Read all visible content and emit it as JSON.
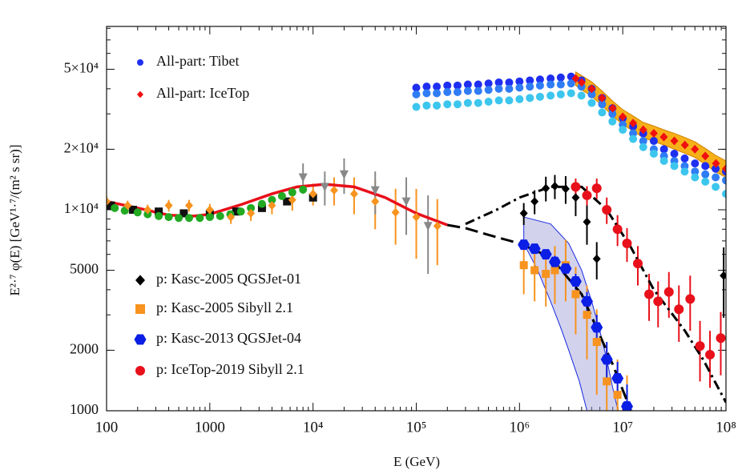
{
  "chart_data": {
    "type": "scatter",
    "xlabel": "E (GeV)",
    "ylabel": "E²·⁷ φ(E)    [GeV¹·⁷/(m² s sr)]",
    "xscale": "log",
    "yscale": "log",
    "xlim": [
      100,
      100000000
    ],
    "ylim": [
      1000,
      81700
    ],
    "xticks": [
      100,
      1000,
      {
        "value": 10000,
        "label": "10⁴"
      },
      {
        "value": 100000,
        "label": "10⁵"
      },
      {
        "value": 1000000,
        "label": "10⁶"
      },
      {
        "value": 10000000,
        "label": "10⁷"
      },
      {
        "value": 100000000,
        "label": "10⁸"
      }
    ],
    "yticks": [
      1000,
      2000,
      5000,
      {
        "value": 10000,
        "label": "1×10⁴"
      },
      {
        "value": 20000,
        "label": "2×10⁴"
      },
      {
        "value": 50000,
        "label": "5×10⁴"
      }
    ],
    "series": [
      {
        "name": "All-part: Tibet",
        "legend_group": 1,
        "marker": "circle",
        "color": "#1f2ff0",
        "x": [
          100000,
          126000,
          158000,
          200000,
          251000,
          316000,
          398000,
          501000,
          631000,
          794000,
          1000000,
          1260000,
          1580000,
          2000000,
          2510000,
          3160000,
          3980000,
          5010000,
          6310000,
          7940000,
          10000000,
          12600000,
          15800000,
          20000000,
          25100000,
          31600000,
          39800000,
          50100000,
          63100000,
          79400000,
          100000000
        ],
        "values": [
          40500,
          41000,
          41000,
          41500,
          41500,
          42000,
          42000,
          42500,
          43000,
          43000,
          43500,
          44000,
          44500,
          45000,
          45500,
          46000,
          44000,
          40000,
          36000,
          32000,
          28500,
          26000,
          24000,
          22000,
          20000,
          19000,
          18000,
          17000,
          16500,
          16000,
          15500
        ]
      },
      {
        "marker": "circle",
        "color": "#2f7cf5",
        "x": [
          100000,
          126000,
          158000,
          200000,
          251000,
          316000,
          398000,
          501000,
          631000,
          794000,
          1000000,
          1260000,
          1580000,
          2000000,
          2510000,
          3160000,
          3980000,
          5010000,
          6310000,
          7940000,
          10000000,
          12600000,
          15800000,
          20000000,
          25100000,
          31600000,
          39800000,
          50100000,
          63100000,
          79400000,
          100000000
        ],
        "values": [
          37500,
          38000,
          38000,
          38500,
          38500,
          39000,
          39000,
          39500,
          40000,
          40000,
          40500,
          41000,
          41500,
          42000,
          42000,
          42500,
          41000,
          37500,
          33500,
          30000,
          26500,
          24000,
          22000,
          20000,
          18500,
          17500,
          16500,
          15500,
          15000,
          14500,
          14000
        ]
      },
      {
        "marker": "circle",
        "color": "#3cc6ee",
        "x": [
          100000,
          126000,
          158000,
          200000,
          251000,
          316000,
          398000,
          501000,
          631000,
          794000,
          1000000,
          1260000,
          1580000,
          2000000,
          2510000,
          3160000,
          3980000,
          5010000,
          6310000,
          7940000,
          10000000,
          12600000,
          15800000,
          20000000,
          25100000,
          31600000,
          39800000,
          50100000,
          63100000,
          79400000,
          100000000
        ],
        "values": [
          32500,
          33000,
          33000,
          33500,
          33500,
          34000,
          34000,
          34500,
          35000,
          35000,
          35500,
          36000,
          36500,
          37000,
          37500,
          38000,
          37000,
          34000,
          30500,
          27500,
          25000,
          22500,
          20500,
          19000,
          17500,
          16500,
          15500,
          14500,
          13800,
          13000,
          12000
        ]
      },
      {
        "name": "All-part: IceTop",
        "legend_group": 1,
        "marker": "diamond",
        "color": "#f01010",
        "band_color": "#f5a800",
        "x": [
          3500000,
          4000000,
          5000000,
          6300000,
          8000000,
          10000000,
          12600000,
          15800000,
          20000000,
          25000000,
          31600000,
          40000000,
          50000000,
          63000000,
          80000000,
          100000000
        ],
        "values": [
          45000,
          43000,
          40000,
          36000,
          32000,
          29000,
          27000,
          25000,
          24000,
          23000,
          22000,
          21000,
          20000,
          18500,
          17000,
          16000
        ],
        "errors": [
          3500,
          3500,
          3300,
          3000,
          2700,
          2500,
          2300,
          2200,
          2100,
          2000,
          2000,
          1900,
          1800,
          1700,
          1600,
          1500
        ]
      },
      {
        "name": "p: Kasc-2005 QGSJet-01",
        "legend_group": 2,
        "marker": "diamond",
        "color": "#000000",
        "x": [
          1100000,
          1400000,
          1800000,
          2200000,
          2800000,
          3500000,
          4500000,
          5600000,
          95000000
        ],
        "values": [
          9600,
          11000,
          12800,
          13100,
          12700,
          11500,
          8700,
          5700,
          4700
        ],
        "errors": [
          1200,
          1500,
          1800,
          1800,
          2000,
          2200,
          2000,
          1200,
          1800
        ]
      },
      {
        "name": "p: Kasc-2005 Sibyll 2.1",
        "legend_group": 2,
        "marker": "square",
        "color": "#f7931e",
        "x": [
          1100000,
          1400000,
          1800000,
          2200000,
          2800000,
          3500000,
          4500000,
          5600000,
          7000000,
          8900000,
          11000000
        ],
        "values": [
          5300,
          5000,
          4800,
          5000,
          5300,
          3800,
          3000,
          2200,
          1400,
          1200,
          1000
        ],
        "errors": [
          1500,
          1500,
          1500,
          1600,
          1800,
          1400,
          1200,
          1000,
          700,
          600,
          500
        ]
      },
      {
        "name": "p: Kasc-2013 QGSJet-04",
        "legend_group": 2,
        "marker": "hexagon",
        "color": "#0a1ee6",
        "x": [
          1100000,
          1400000,
          1800000,
          2200000,
          2800000,
          3500000,
          4500000,
          5600000,
          7000000,
          8900000,
          11000000
        ],
        "values": [
          6700,
          6400,
          6000,
          5500,
          5100,
          4400,
          3500,
          2600,
          1800,
          1450,
          1050
        ],
        "errors": [
          300,
          300,
          300,
          400,
          400,
          400,
          400,
          400,
          400,
          300,
          300
        ]
      },
      {
        "name": "p: IceTop-2019 Sibyll 2.1",
        "legend_group": 2,
        "marker": "circle",
        "color": "#e8101a",
        "x": [
          3500000,
          4500000,
          5600000,
          7000000,
          8900000,
          11000000,
          14000000,
          18000000,
          22000000,
          28000000,
          35000000,
          45000000,
          56000000,
          70000000,
          89000000
        ],
        "values": [
          13000,
          11800,
          12800,
          10000,
          8000,
          6800,
          5400,
          3800,
          3500,
          3900,
          3200,
          3600,
          2100,
          1900,
          2300
        ],
        "errors": [
          1300,
          1300,
          1500,
          1500,
          1400,
          1300,
          1200,
          1000,
          900,
          1000,
          1000,
          1100,
          700,
          600,
          800
        ]
      },
      {
        "marker": "square",
        "color": "#111111",
        "x": [
          110,
          180,
          320,
          560,
          1000,
          1800,
          3200,
          5600,
          10000
        ],
        "values": [
          10500,
          10000,
          9800,
          9600,
          9500,
          9800,
          10200,
          11000,
          11500
        ]
      },
      {
        "marker": "circle",
        "color": "#22aa22",
        "x": [
          120,
          150,
          200,
          250,
          320,
          400,
          500,
          630,
          800,
          1000,
          1260,
          1580,
          2000,
          2500,
          3200,
          4000,
          5000,
          6300,
          8000
        ],
        "values": [
          10200,
          9900,
          9700,
          9500,
          9300,
          9200,
          9100,
          9100,
          9100,
          9200,
          9300,
          9500,
          9800,
          10200,
          10700,
          11200,
          11700,
          12200,
          12600
        ]
      },
      {
        "marker": "diamond",
        "color": "#f7931e",
        "x": [
          100,
          160,
          250,
          400,
          630,
          1000,
          1600,
          2500,
          4000,
          6300,
          10000,
          16000,
          25000,
          40000,
          63000,
          100000,
          160000
        ],
        "values": [
          11000,
          10500,
          10000,
          10500,
          10500,
          10000,
          9200,
          9600,
          10500,
          11200,
          12000,
          12500,
          12000,
          11000,
          9700,
          9200,
          8300
        ],
        "errors": [
          600,
          600,
          600,
          700,
          700,
          700,
          700,
          800,
          1000,
          1300,
          1500,
          2000,
          2500,
          3000,
          3000,
          3500,
          3000
        ]
      },
      {
        "marker": "triangle",
        "color": "#888888",
        "x": [
          8000,
          13000,
          20000,
          40000,
          80000,
          130000
        ],
        "values": [
          14500,
          13000,
          15000,
          12500,
          11000,
          8300
        ],
        "errors": [
          2500,
          2500,
          3000,
          3000,
          3500,
          3500
        ]
      }
    ],
    "band": {
      "color": "#9c9cd6",
      "upper": {
        "x": [
          1100000,
          2000000,
          3000000,
          4000000,
          5000000,
          6000000,
          7000000,
          8000000,
          9000000
        ],
        "values": [
          9200,
          8500,
          6800,
          5000,
          3500,
          2500,
          1800,
          1300,
          1000
        ]
      },
      "lower": {
        "x": [
          1100000,
          1500000,
          2000000,
          2500000,
          3000000,
          3800000,
          4500000
        ],
        "values": [
          6800,
          5000,
          3500,
          2600,
          2000,
          1400,
          1000
        ]
      }
    },
    "curves": [
      {
        "style": "solid",
        "color": "#e8101a",
        "x": [
          100,
          200,
          400,
          700,
          1000,
          2000,
          4000,
          7000,
          13000,
          25000,
          50000,
          100000,
          200000
        ],
        "values": [
          11000,
          10200,
          9400,
          9300,
          9500,
          10600,
          12000,
          13000,
          13400,
          13000,
          11500,
          9600,
          8400
        ]
      },
      {
        "style": "dashed",
        "color": "#000000",
        "x": [
          200000,
          300000,
          500000,
          1000000,
          2000000,
          4000000,
          8000000,
          12000000
        ],
        "values": [
          8400,
          8100,
          7500,
          6800,
          5800,
          3800,
          1700,
          1000
        ]
      },
      {
        "style": "dashdot",
        "color": "#000000",
        "x": [
          300000,
          600000,
          1000000,
          2000000,
          4000000,
          7000000,
          12000000,
          20000000,
          40000000,
          60000000,
          100000000
        ],
        "values": [
          8500,
          10000,
          11500,
          13000,
          13000,
          10000,
          6500,
          4000,
          2500,
          1800,
          1100
        ]
      }
    ]
  }
}
